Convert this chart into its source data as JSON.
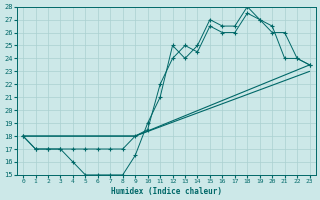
{
  "xlabel": "Humidex (Indice chaleur)",
  "xlim": [
    -0.5,
    23.5
  ],
  "ylim": [
    15,
    28
  ],
  "xticks": [
    0,
    1,
    2,
    3,
    4,
    5,
    6,
    7,
    8,
    9,
    10,
    11,
    12,
    13,
    14,
    15,
    16,
    17,
    18,
    19,
    20,
    21,
    22,
    23
  ],
  "yticks": [
    15,
    16,
    17,
    18,
    19,
    20,
    21,
    22,
    23,
    24,
    25,
    26,
    27,
    28
  ],
  "bg_color": "#cce8e8",
  "line_color": "#006868",
  "grid_color": "#aad0d0",
  "line1_x": [
    0,
    1,
    2,
    3,
    4,
    5,
    6,
    7,
    8,
    9,
    10,
    11,
    12,
    13,
    14,
    15,
    16,
    17,
    18,
    19,
    20,
    21,
    22,
    23
  ],
  "line1_y": [
    18,
    17,
    17,
    17,
    16,
    15,
    15,
    15,
    15,
    16.5,
    19,
    21,
    25,
    24,
    25,
    27,
    26.5,
    26.5,
    28,
    27,
    26.5,
    24,
    24,
    23.5
  ],
  "line2_x": [
    0,
    1,
    2,
    3,
    4,
    5,
    6,
    7,
    8,
    9,
    10,
    11,
    12,
    13,
    14,
    15,
    16,
    17,
    18,
    19,
    20,
    21,
    22,
    23
  ],
  "line2_y": [
    18,
    17,
    17,
    17,
    17,
    17,
    17,
    17,
    17,
    18,
    18.5,
    22,
    24,
    25,
    24.5,
    26.5,
    26,
    26,
    27.5,
    27,
    26,
    26,
    24,
    23.5
  ],
  "line3_x": [
    0,
    9,
    23
  ],
  "line3_y": [
    18,
    18,
    23
  ],
  "line4_x": [
    0,
    9,
    23
  ],
  "line4_y": [
    18,
    18,
    23.5
  ]
}
